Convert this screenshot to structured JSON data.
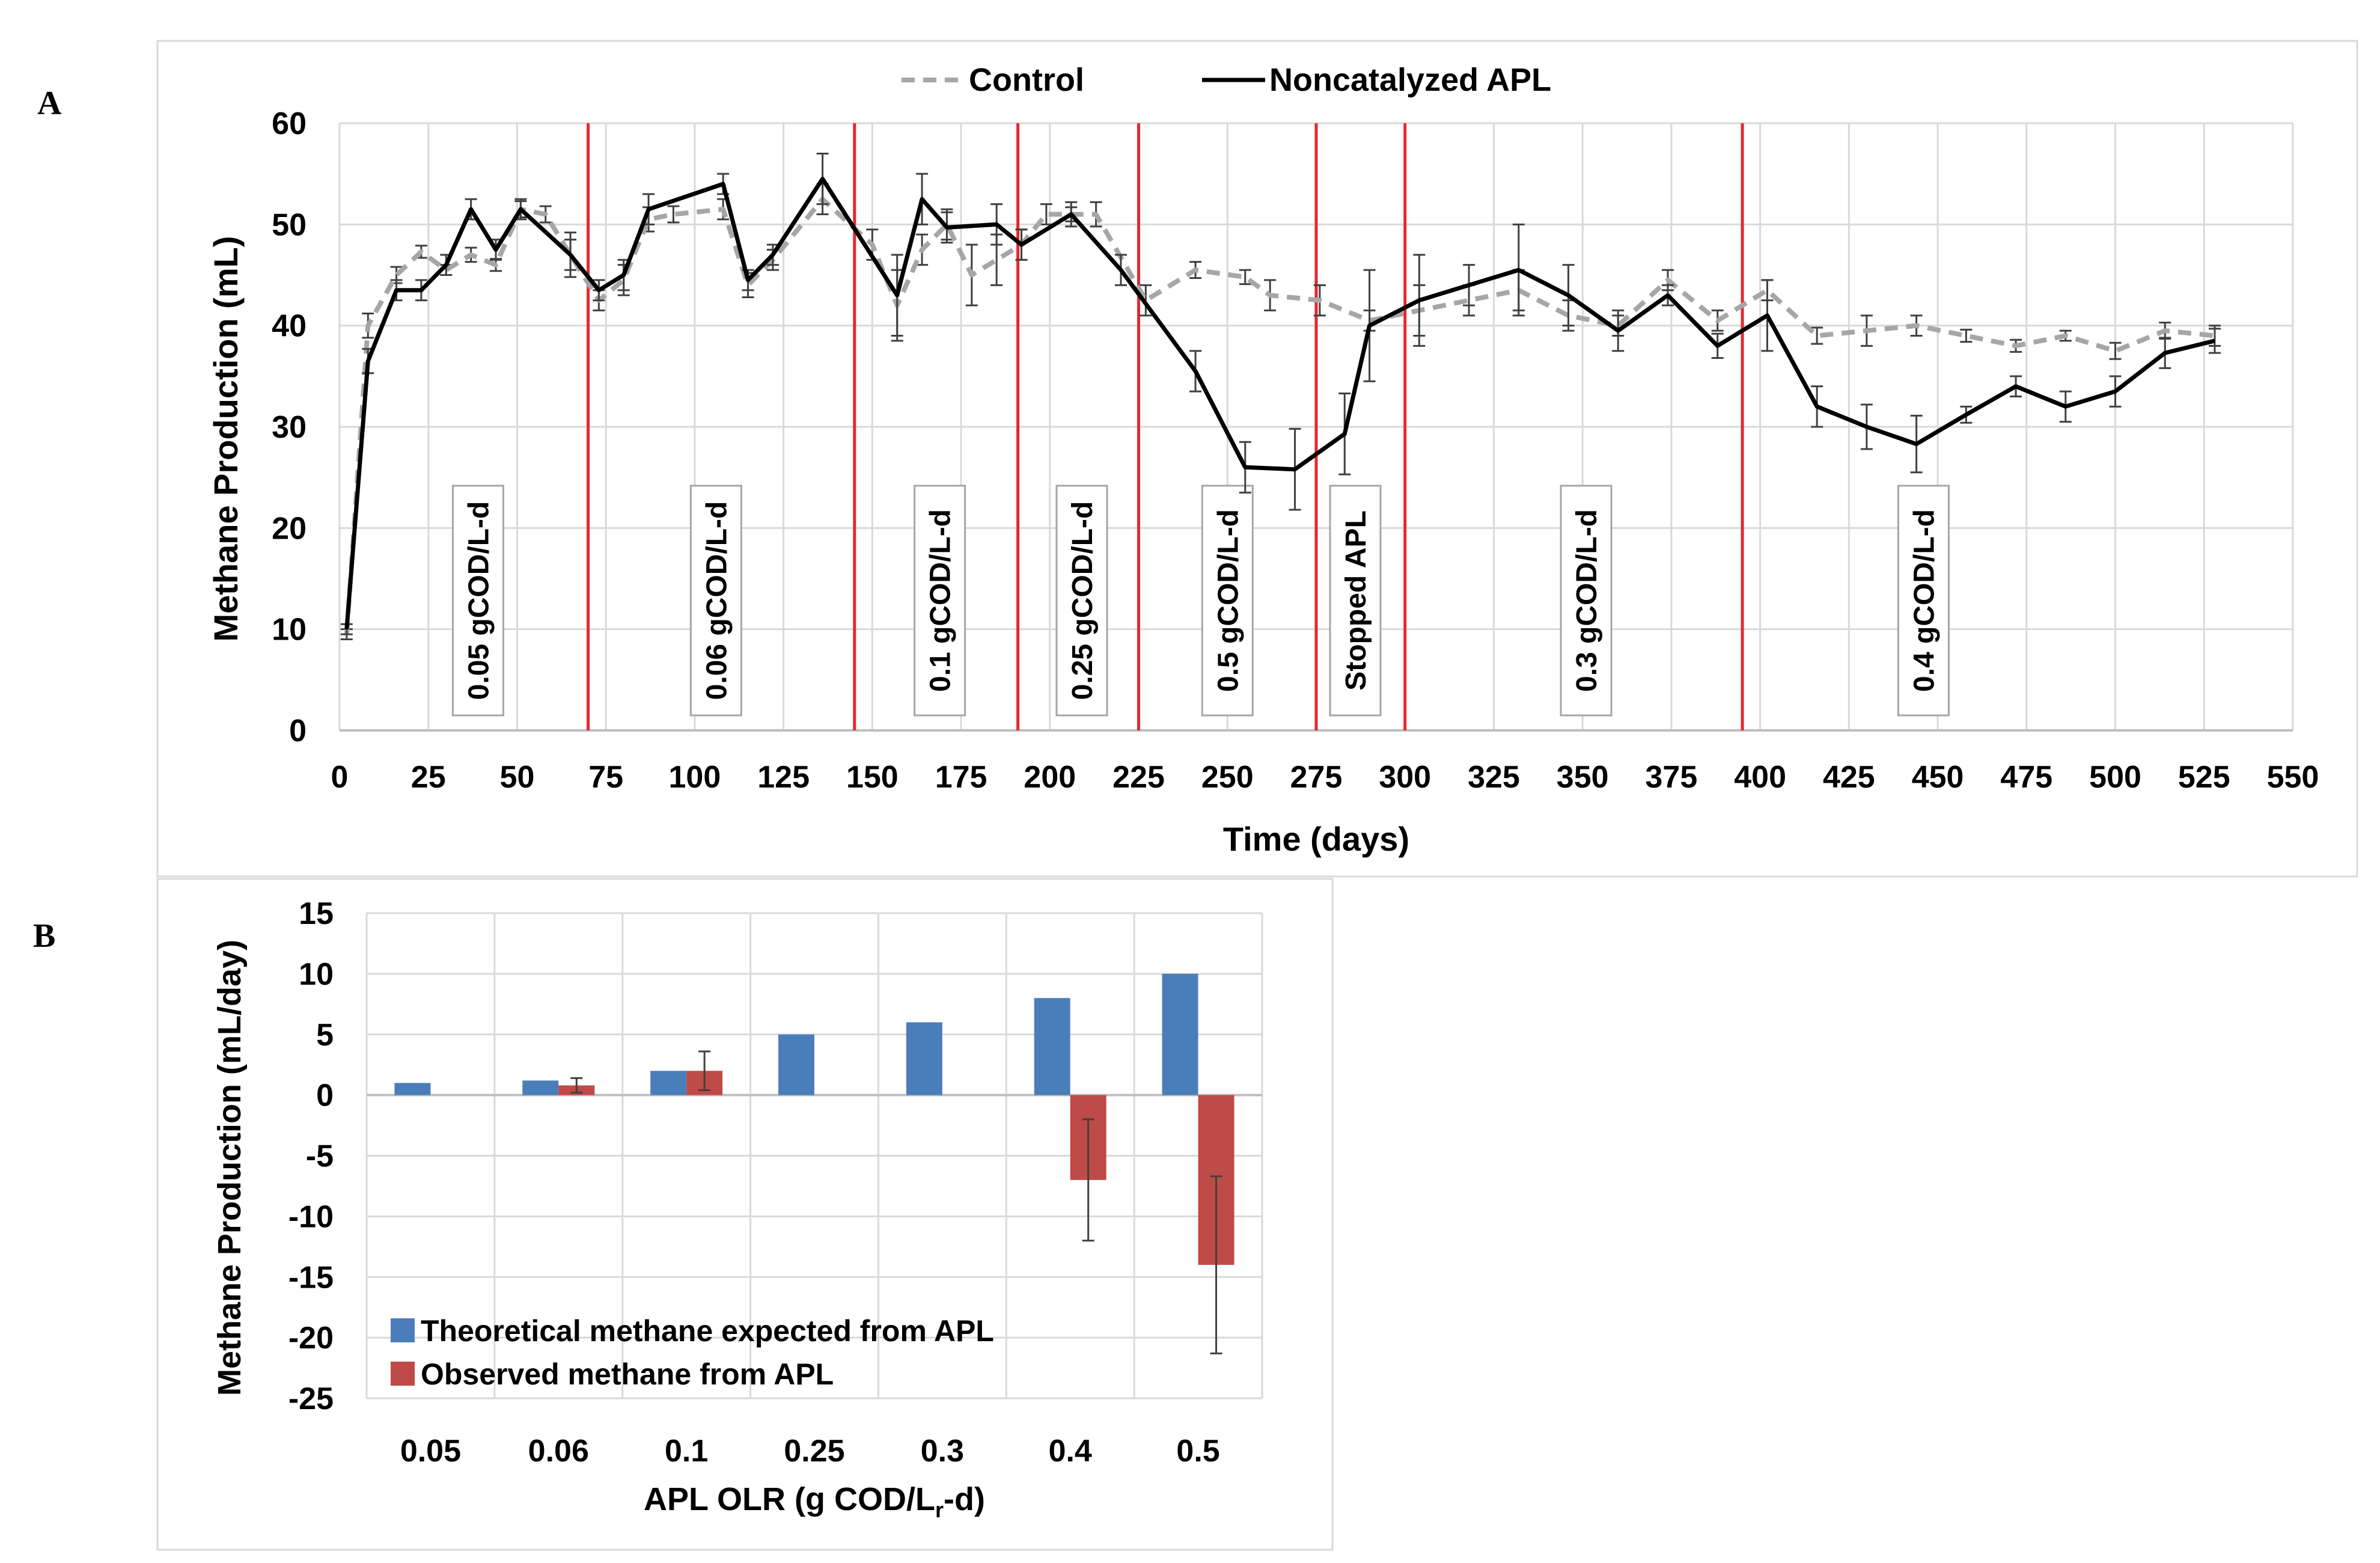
{
  "panels": {
    "a_label": "A",
    "b_label": "B"
  },
  "colors": {
    "control": "#a6a6a6",
    "apl": "#000000",
    "phase_line": "#e8262b",
    "grid": "#d9d9d9",
    "theoretical": "#4a7ebb",
    "observed": "#be4b48",
    "frame": "#d9d9d9"
  },
  "chart_data": [
    {
      "panel": "A",
      "type": "line",
      "title": "",
      "xlabel": "Time (days)",
      "ylabel": "Methane Production (mL)",
      "xlim": [
        0,
        550
      ],
      "ylim": [
        0,
        60
      ],
      "x_ticks": [
        "0",
        "25",
        "50",
        "75",
        "100",
        "125",
        "150",
        "175",
        "200",
        "225",
        "250",
        "275",
        "300",
        "325",
        "350",
        "375",
        "400",
        "425",
        "450",
        "475",
        "500",
        "525",
        "550"
      ],
      "y_ticks": [
        "0",
        "10",
        "20",
        "30",
        "40",
        "50",
        "60"
      ],
      "grid": true,
      "legend": "top-center",
      "series": [
        {
          "name": "Control",
          "style": "dashed",
          "points": [
            [
              2,
              9.5
            ],
            [
              8,
              40
            ],
            [
              16,
              45
            ],
            [
              23,
              47.3
            ],
            [
              30,
              45.5
            ],
            [
              37,
              47
            ],
            [
              44,
              46
            ],
            [
              51,
              51.5
            ],
            [
              58,
              51
            ],
            [
              65,
              47
            ],
            [
              73,
              42.5
            ],
            [
              80,
              44.5
            ],
            [
              87,
              50.5
            ],
            [
              94,
              51
            ],
            [
              108,
              51.5
            ],
            [
              115,
              44
            ],
            [
              122,
              46.5
            ],
            [
              136,
              52.5
            ],
            [
              150,
              48
            ],
            [
              157,
              42
            ],
            [
              164,
              47.5
            ],
            [
              171,
              50
            ],
            [
              178,
              45
            ],
            [
              185,
              46.5
            ],
            [
              192,
              48
            ],
            [
              199,
              51
            ],
            [
              206,
              51
            ],
            [
              213,
              51
            ],
            [
              227,
              42.5
            ],
            [
              241,
              45.5
            ],
            [
              255,
              44.8
            ],
            [
              262,
              43
            ],
            [
              276,
              42.5
            ],
            [
              290,
              40.5
            ],
            [
              304,
              41.5
            ],
            [
              318,
              42.5
            ],
            [
              332,
              43.5
            ],
            [
              346,
              41
            ],
            [
              360,
              40
            ],
            [
              374,
              44.5
            ],
            [
              388,
              40.5
            ],
            [
              402,
              43.5
            ],
            [
              416,
              39
            ],
            [
              430,
              39.5
            ],
            [
              444,
              40
            ],
            [
              458,
              39
            ],
            [
              472,
              38
            ],
            [
              486,
              39
            ],
            [
              500,
              37.5
            ],
            [
              514,
              39.5
            ],
            [
              528,
              39
            ]
          ],
          "errors": [
            0.5,
            1.2,
            0.8,
            0.6,
            0.5,
            0.7,
            0.6,
            0.8,
            0.8,
            2.2,
            1,
            1.5,
            1.2,
            0.8,
            1,
            1.2,
            1,
            1.5,
            1.5,
            3.5,
            1.5,
            1.5,
            3,
            2.5,
            1.5,
            1,
            0.7,
            1.2,
            1.5,
            0.8,
            0.7,
            1.5,
            1.5,
            1,
            2.5,
            1.5,
            2,
            1.5,
            1,
            1,
            1,
            1,
            0.8,
            1.5,
            1,
            0.6,
            0.6,
            0.5,
            0.8,
            0.8,
            1
          ]
        },
        {
          "name": "Noncatalyzed APL",
          "style": "solid",
          "points": [
            [
              2,
              10
            ],
            [
              8,
              36.5
            ],
            [
              16,
              43.5
            ],
            [
              23,
              43.5
            ],
            [
              30,
              46
            ],
            [
              37,
              51.5
            ],
            [
              44,
              47.5
            ],
            [
              51,
              51.5
            ],
            [
              65,
              47
            ],
            [
              73,
              43.5
            ],
            [
              80,
              45
            ],
            [
              87,
              51.5
            ],
            [
              108,
              54
            ],
            [
              115,
              44.5
            ],
            [
              122,
              47
            ],
            [
              136,
              54.5
            ],
            [
              157,
              43
            ],
            [
              164,
              52.5
            ],
            [
              171,
              49.7
            ],
            [
              185,
              50
            ],
            [
              192,
              48
            ],
            [
              206,
              51
            ],
            [
              220,
              45.5
            ],
            [
              241,
              35.5
            ],
            [
              255,
              26
            ],
            [
              269,
              25.8
            ],
            [
              283,
              29.3
            ],
            [
              290,
              40
            ],
            [
              304,
              42.5
            ],
            [
              318,
              44
            ],
            [
              332,
              45.5
            ],
            [
              346,
              43
            ],
            [
              360,
              39.5
            ],
            [
              374,
              43
            ],
            [
              388,
              38
            ],
            [
              402,
              41
            ],
            [
              416,
              32
            ],
            [
              430,
              30
            ],
            [
              444,
              28.3
            ],
            [
              458,
              31.2
            ],
            [
              472,
              34
            ],
            [
              486,
              32
            ],
            [
              500,
              33.5
            ],
            [
              514,
              37.3
            ],
            [
              528,
              38.5
            ]
          ],
          "errors": [
            0.5,
            1.2,
            1,
            1,
            1,
            1,
            1,
            1,
            1.5,
            1,
            1.5,
            1.5,
            1,
            1,
            1,
            2.5,
            4,
            2.5,
            1.5,
            2,
            1.5,
            1.2,
            1.5,
            2,
            2.5,
            4,
            4,
            5.5,
            4.5,
            2,
            4.5,
            3,
            2,
            1,
            1.2,
            3.5,
            2,
            2.2,
            2.8,
            0.8,
            1,
            1.5,
            1.5,
            1.5,
            1.2
          ]
        }
      ],
      "phase_boundaries": [
        70,
        145,
        191,
        225,
        275,
        300,
        395
      ],
      "phase_labels": [
        {
          "text": "0.05 gCOD/L-d",
          "x": 39
        },
        {
          "text": "0.06 gCOD/L-d",
          "x": 106
        },
        {
          "text": "0.1 gCOD/L-d",
          "x": 169
        },
        {
          "text": "0.25 gCOD/L-d",
          "x": 209
        },
        {
          "text": "0.5 gCOD/L-d",
          "x": 250
        },
        {
          "text": "Stopped APL",
          "x": 286
        },
        {
          "text": "0.3 gCOD/L-d",
          "x": 351
        },
        {
          "text": "0.4 gCOD/L-d",
          "x": 446
        }
      ]
    },
    {
      "panel": "B",
      "type": "bar",
      "title": "",
      "xlabel": "APL OLR (g COD/Lr-d)",
      "xlabel_main": "APL OLR (g COD/L",
      "xlabel_sub": "r",
      "xlabel_tail": "-d)",
      "ylabel": "Methane Production (mL/day)",
      "categories": [
        "0.05",
        "0.06",
        "0.1",
        "0.25",
        "0.3",
        "0.4",
        "0.5"
      ],
      "ylim": [
        -25,
        15
      ],
      "y_ticks": [
        "15",
        "10",
        "5",
        "0",
        "-5",
        "-10",
        "-15",
        "-20",
        "-25"
      ],
      "grid": true,
      "legend": "bottom-left",
      "series": [
        {
          "name": "Theoretical methane expected from APL",
          "values": [
            1,
            1.2,
            2,
            5,
            6,
            8,
            10
          ],
          "errors": [
            0,
            0,
            0,
            0,
            0,
            0,
            0
          ]
        },
        {
          "name": "Observed methane from APL",
          "values": [
            null,
            0.8,
            2,
            null,
            null,
            -7,
            -14
          ],
          "errors": [
            0,
            0.6,
            1.6,
            0,
            0,
            5,
            7.3
          ]
        }
      ]
    }
  ]
}
